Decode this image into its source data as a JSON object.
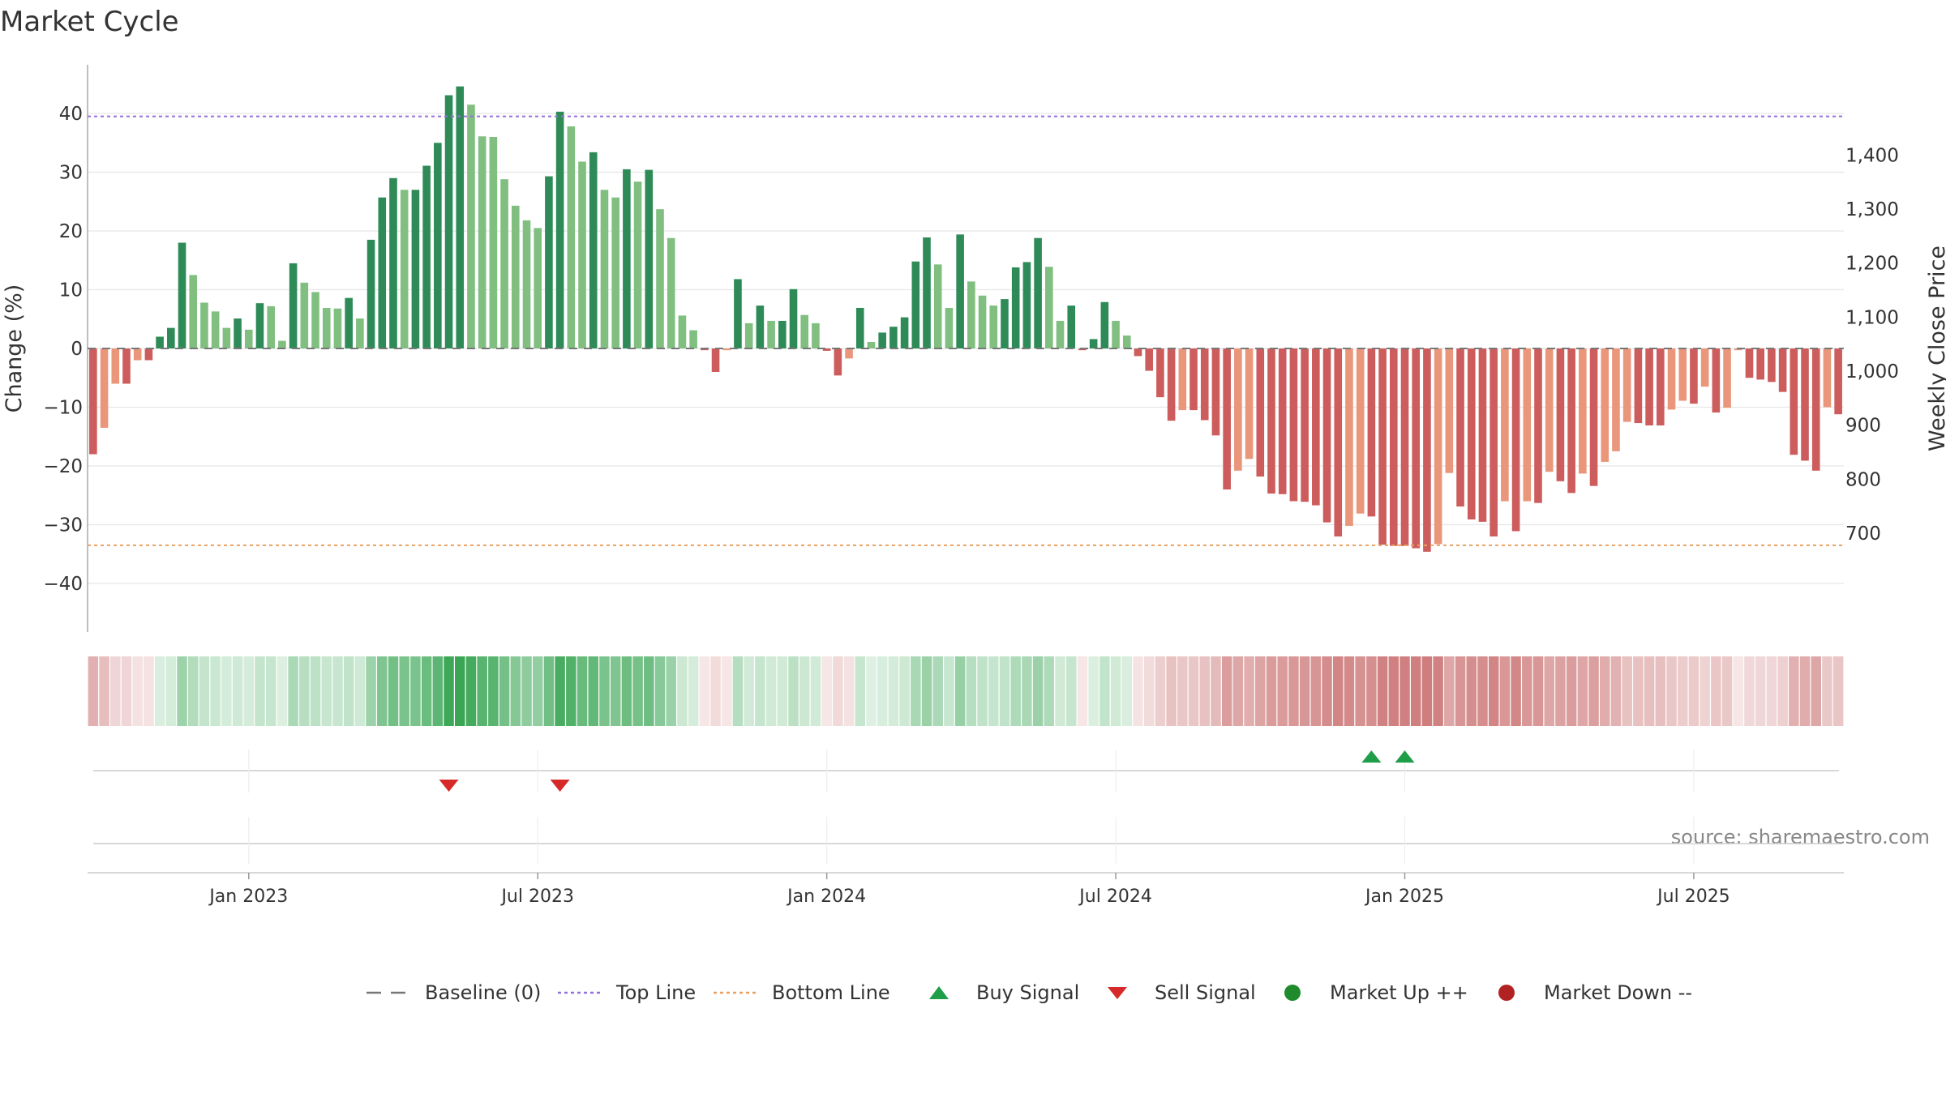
{
  "chart_data": {
    "type": "bar",
    "title": "Market Cycle",
    "ylabel": "Change (%)",
    "y2label": "Weekly Close Price",
    "source": "source: sharemaestro.com",
    "ylim": [
      -48,
      48
    ],
    "y_ticks": [
      40,
      30,
      20,
      10,
      0,
      -10,
      -20,
      -30,
      -40
    ],
    "y_tick_labels": [
      "40",
      "30",
      "20",
      "10",
      "0",
      "−10",
      "−20",
      "−30",
      "−40"
    ],
    "y2_ticks": [
      1400,
      1300,
      1200,
      1100,
      1000,
      900,
      800,
      700
    ],
    "y2_tick_labels": [
      "1,400",
      "1,300",
      "1,200",
      "1,100",
      "1,000",
      "900",
      "800",
      "700"
    ],
    "y2_map": {
      "price_at_zero_change": 1042,
      "price_per_pct": 10.88
    },
    "x_ticks": [
      14.5,
      40.5,
      66.5,
      92.5,
      118.5,
      144.5
    ],
    "x_tick_labels": [
      "Jan 2023",
      "Jul 2023",
      "Jan 2024",
      "Jul 2024",
      "Jan 2025",
      "Jul 2025"
    ],
    "top_line": 39.5,
    "bottom_line": -33.5,
    "values": [
      -18,
      -13.5,
      -6,
      -6,
      -2,
      -2,
      2,
      3.5,
      18,
      12.5,
      7.8,
      6.3,
      3.5,
      5.1,
      3.2,
      7.7,
      7.2,
      1.3,
      14.5,
      11.2,
      9.6,
      6.9,
      6.8,
      8.6,
      5.1,
      18.5,
      25.7,
      29,
      27,
      27,
      31.1,
      35,
      43.1,
      44.6,
      41.5,
      36.1,
      36,
      28.8,
      24.3,
      21.8,
      20.5,
      29.3,
      40.3,
      37.8,
      31.8,
      33.4,
      27,
      25.7,
      30.5,
      28.4,
      30.4,
      23.7,
      18.8,
      5.6,
      3.1,
      -0.3,
      -4,
      -0.3,
      11.8,
      4.3,
      7.3,
      4.7,
      4.7,
      10.1,
      5.7,
      4.3,
      -0.4,
      -4.6,
      -1.7,
      6.9,
      1.1,
      2.7,
      3.7,
      5.3,
      14.8,
      18.9,
      14.3,
      6.9,
      19.4,
      11.4,
      9,
      7.3,
      8.4,
      13.8,
      14.7,
      18.8,
      13.9,
      4.7,
      7.3,
      -0.3,
      1.6,
      7.9,
      4.7,
      2.2,
      -1.3,
      -3.8,
      -8.3,
      -12.3,
      -10.5,
      -10.5,
      -12.2,
      -14.8,
      -24,
      -20.8,
      -18.8,
      -21.8,
      -24.7,
      -24.8,
      -26,
      -26.1,
      -26.7,
      -29.6,
      -32,
      -30.2,
      -28.1,
      -28.6,
      -33.4,
      -33.6,
      -33.6,
      -34,
      -34.6,
      -33.3,
      -21.2,
      -26.9,
      -29.1,
      -29.5,
      -32,
      -26,
      -31.1,
      -26,
      -26.3,
      -21,
      -22.6,
      -24.6,
      -21.3,
      -23.4,
      -19.3,
      -17.5,
      -12.5,
      -12.7,
      -13.1,
      -13.1,
      -10.4,
      -8.9,
      -9.4,
      -6.5,
      -10.9,
      -10.1,
      -0.3,
      -5,
      -5.3,
      -5.7,
      -7.4,
      -18.1,
      -19.1,
      -20.8,
      -10,
      -11.2
    ],
    "sell_signal_indices": [
      32,
      42
    ],
    "buy_signal_indices": [
      115,
      118
    ],
    "series": [
      {
        "name": "Change (%)",
        "colors": {
          "up_strong": "#2e8b57",
          "up_weak": "#80bf80",
          "down_strong": "#cd5c5c",
          "down_weak": "#e9967a"
        }
      }
    ],
    "legend": {
      "placement": "bottom-center",
      "items": [
        {
          "label": "Baseline (0)",
          "marker": "dashed-line",
          "color": "#777777"
        },
        {
          "label": "Top Line",
          "marker": "dotted-line",
          "color": "#9370db"
        },
        {
          "label": "Bottom Line",
          "marker": "dotted-line",
          "color": "#e9a060"
        },
        {
          "label": "Buy Signal",
          "marker": "triangle-up",
          "color": "#1f9e4a"
        },
        {
          "label": "Sell Signal",
          "marker": "triangle-down",
          "color": "#d62a2a"
        },
        {
          "label": "Market Up ++",
          "marker": "circle",
          "color": "#1f8b2c"
        },
        {
          "label": "Market Down --",
          "marker": "circle",
          "color": "#b22222"
        }
      ]
    },
    "colors": {
      "grid": "#e6e6e6",
      "axis": "#aaaaaa",
      "text": "#333333",
      "source": "#888888"
    }
  }
}
